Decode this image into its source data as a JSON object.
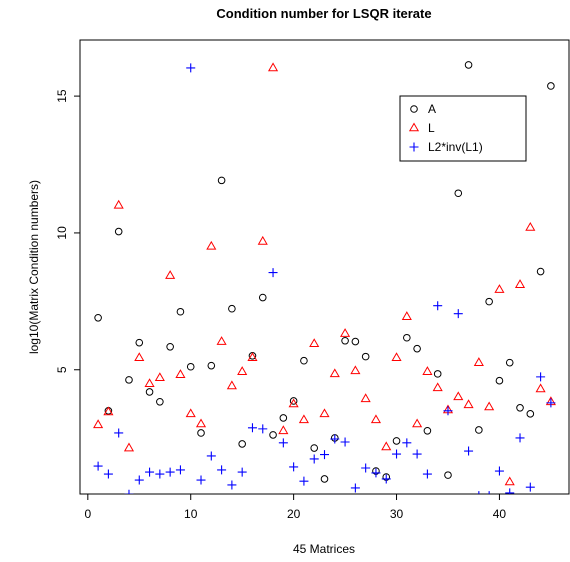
{
  "chart_data": {
    "type": "scatter",
    "title": "Condition number for LSQR iterate",
    "x_label": "45 Matrices",
    "y_label": "log10(Matrix Condition numbers)",
    "x": [
      1,
      2,
      3,
      4,
      5,
      6,
      7,
      8,
      9,
      10,
      11,
      12,
      13,
      14,
      15,
      16,
      17,
      18,
      19,
      20,
      21,
      22,
      23,
      24,
      25,
      26,
      27,
      28,
      29,
      30,
      31,
      32,
      33,
      34,
      35,
      36,
      37,
      38,
      39,
      40,
      41,
      42,
      43,
      44,
      45
    ],
    "xlim": [
      -0.76,
      46.76
    ],
    "xticks": [
      0,
      10,
      20,
      30,
      40
    ],
    "ylim": [
      0.46,
      17.05
    ],
    "yticks": [
      5,
      10,
      15
    ],
    "legend": "topright",
    "series": [
      {
        "name": "A",
        "color": "#000000",
        "marker": "circle",
        "values": [
          6.9,
          3.5,
          10.05,
          4.63,
          5.99,
          4.19,
          3.83,
          5.84,
          7.12,
          5.11,
          2.69,
          5.15,
          11.92,
          7.23,
          2.29,
          5.51,
          7.64,
          2.62,
          3.24,
          3.86,
          5.33,
          2.14,
          1.01,
          2.51,
          6.06,
          6.03,
          5.48,
          1.3,
          1.08,
          2.4,
          6.17,
          5.77,
          2.77,
          4.85,
          1.15,
          11.45,
          16.14,
          2.8,
          7.49,
          4.6,
          5.26,
          3.61,
          3.39,
          8.59,
          15.37
        ]
      },
      {
        "name": "L",
        "color": "#ff0000",
        "marker": "triangle",
        "values": [
          2.99,
          3.46,
          11.01,
          2.14,
          5.44,
          4.49,
          4.71,
          8.44,
          4.82,
          3.39,
          3.02,
          9.51,
          6.03,
          4.41,
          4.93,
          5.44,
          9.69,
          16.03,
          2.77,
          3.75,
          3.17,
          5.95,
          3.39,
          4.85,
          6.32,
          4.96,
          3.94,
          3.17,
          2.18,
          5.44,
          6.94,
          3.02,
          4.93,
          4.34,
          3.53,
          4.01,
          3.72,
          5.26,
          3.64,
          7.93,
          0.9,
          8.11,
          10.2,
          4.3,
          3.83
        ]
      },
      {
        "name": "L2*inv(L1)",
        "color": "#0000ff",
        "marker": "plus",
        "values": [
          1.48,
          1.19,
          2.69,
          0.45,
          0.97,
          1.26,
          1.19,
          1.26,
          1.34,
          16.03,
          0.97,
          1.85,
          1.34,
          0.79,
          1.26,
          2.88,
          2.84,
          8.55,
          2.33,
          1.45,
          0.93,
          1.74,
          1.9,
          2.47,
          2.36,
          0.68,
          1.41,
          1.23,
          1.01,
          1.92,
          2.33,
          1.92,
          1.19,
          7.34,
          3.5,
          7.05,
          2.03,
          0.4,
          0.4,
          1.3,
          0.5,
          2.51,
          0.71,
          4.74,
          3.79
        ]
      }
    ]
  }
}
